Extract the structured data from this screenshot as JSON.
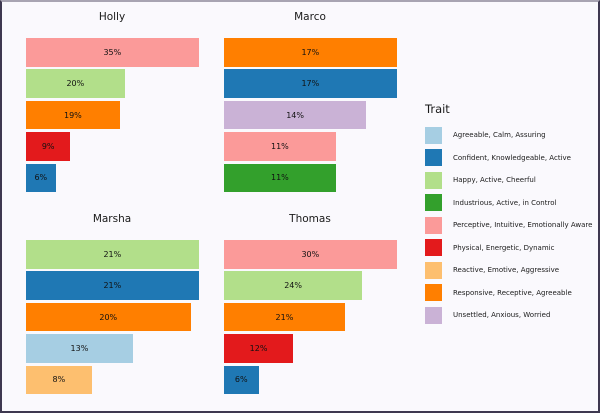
{
  "colors": {
    "background": "#FAF9FD",
    "border": "#3E3850",
    "label_text": "#111111"
  },
  "chart_data": {
    "type": "bar",
    "orientation": "horizontal",
    "value_unit": "%",
    "layout": "2x2 facets, free x scale per facet, no axes or gridlines, legend at right",
    "facets": [
      {
        "title": "Holly",
        "bars": [
          {
            "trait": "Perceptive, Intuitive, Emotionally Aware",
            "value": 35,
            "label": "35%",
            "color": "#FB9A99"
          },
          {
            "trait": "Happy, Active, Cheerful",
            "value": 20,
            "label": "20%",
            "color": "#B2DF8A"
          },
          {
            "trait": "Responsive, Receptive, Agreeable",
            "value": 19,
            "label": "19%",
            "color": "#FF7F00"
          },
          {
            "trait": "Physical, Energetic, Dynamic",
            "value": 9,
            "label": "9%",
            "color": "#E31A1C"
          },
          {
            "trait": "Confident, Knowledgeable, Active",
            "value": 6,
            "label": "6%",
            "color": "#1F78B4"
          }
        ]
      },
      {
        "title": "Marco",
        "bars": [
          {
            "trait": "Responsive, Receptive, Agreeable",
            "value": 17,
            "label": "17%",
            "color": "#FF7F00"
          },
          {
            "trait": "Confident, Knowledgeable, Active",
            "value": 17,
            "label": "17%",
            "color": "#1F78B4"
          },
          {
            "trait": "Unsettled, Anxious, Worried",
            "value": 14,
            "label": "14%",
            "color": "#CAB2D6"
          },
          {
            "trait": "Perceptive, Intuitive, Emotionally Aware",
            "value": 11,
            "label": "11%",
            "color": "#FB9A99"
          },
          {
            "trait": "Industrious, Active, in Control",
            "value": 11,
            "label": "11%",
            "color": "#33A02C"
          }
        ]
      },
      {
        "title": "Marsha",
        "bars": [
          {
            "trait": "Happy, Active, Cheerful",
            "value": 21,
            "label": "21%",
            "color": "#B2DF8A"
          },
          {
            "trait": "Confident, Knowledgeable, Active",
            "value": 21,
            "label": "21%",
            "color": "#1F78B4"
          },
          {
            "trait": "Responsive, Receptive, Agreeable",
            "value": 20,
            "label": "20%",
            "color": "#FF7F00"
          },
          {
            "trait": "Agreeable, Calm, Assuring",
            "value": 13,
            "label": "13%",
            "color": "#A6CEE3"
          },
          {
            "trait": "Reactive, Emotive, Aggressive",
            "value": 8,
            "label": "8%",
            "color": "#FDBF6F"
          }
        ]
      },
      {
        "title": "Thomas",
        "bars": [
          {
            "trait": "Perceptive, Intuitive, Emotionally Aware",
            "value": 30,
            "label": "30%",
            "color": "#FB9A99"
          },
          {
            "trait": "Happy, Active, Cheerful",
            "value": 24,
            "label": "24%",
            "color": "#B2DF8A"
          },
          {
            "trait": "Responsive, Receptive, Agreeable",
            "value": 21,
            "label": "21%",
            "color": "#FF7F00"
          },
          {
            "trait": "Physical, Energetic, Dynamic",
            "value": 12,
            "label": "12%",
            "color": "#E31A1C"
          },
          {
            "trait": "Confident, Knowledgeable, Active",
            "value": 6,
            "label": "6%",
            "color": "#1F78B4"
          }
        ]
      }
    ],
    "legend": {
      "title": "Trait",
      "entries": [
        {
          "label": "Agreeable, Calm, Assuring",
          "color": "#A6CEE3"
        },
        {
          "label": "Confident, Knowledgeable, Active",
          "color": "#1F78B4"
        },
        {
          "label": "Happy, Active, Cheerful",
          "color": "#B2DF8A"
        },
        {
          "label": "Industrious, Active, in Control",
          "color": "#33A02C"
        },
        {
          "label": "Perceptive, Intuitive, Emotionally Aware",
          "color": "#FB9A99"
        },
        {
          "label": "Physical, Energetic, Dynamic",
          "color": "#E31A1C"
        },
        {
          "label": "Reactive, Emotive, Aggressive",
          "color": "#FDBF6F"
        },
        {
          "label": "Responsive, Receptive, Agreeable",
          "color": "#FF7F00"
        },
        {
          "label": "Unsettled, Anxious, Worried",
          "color": "#CAB2D6"
        }
      ]
    }
  }
}
